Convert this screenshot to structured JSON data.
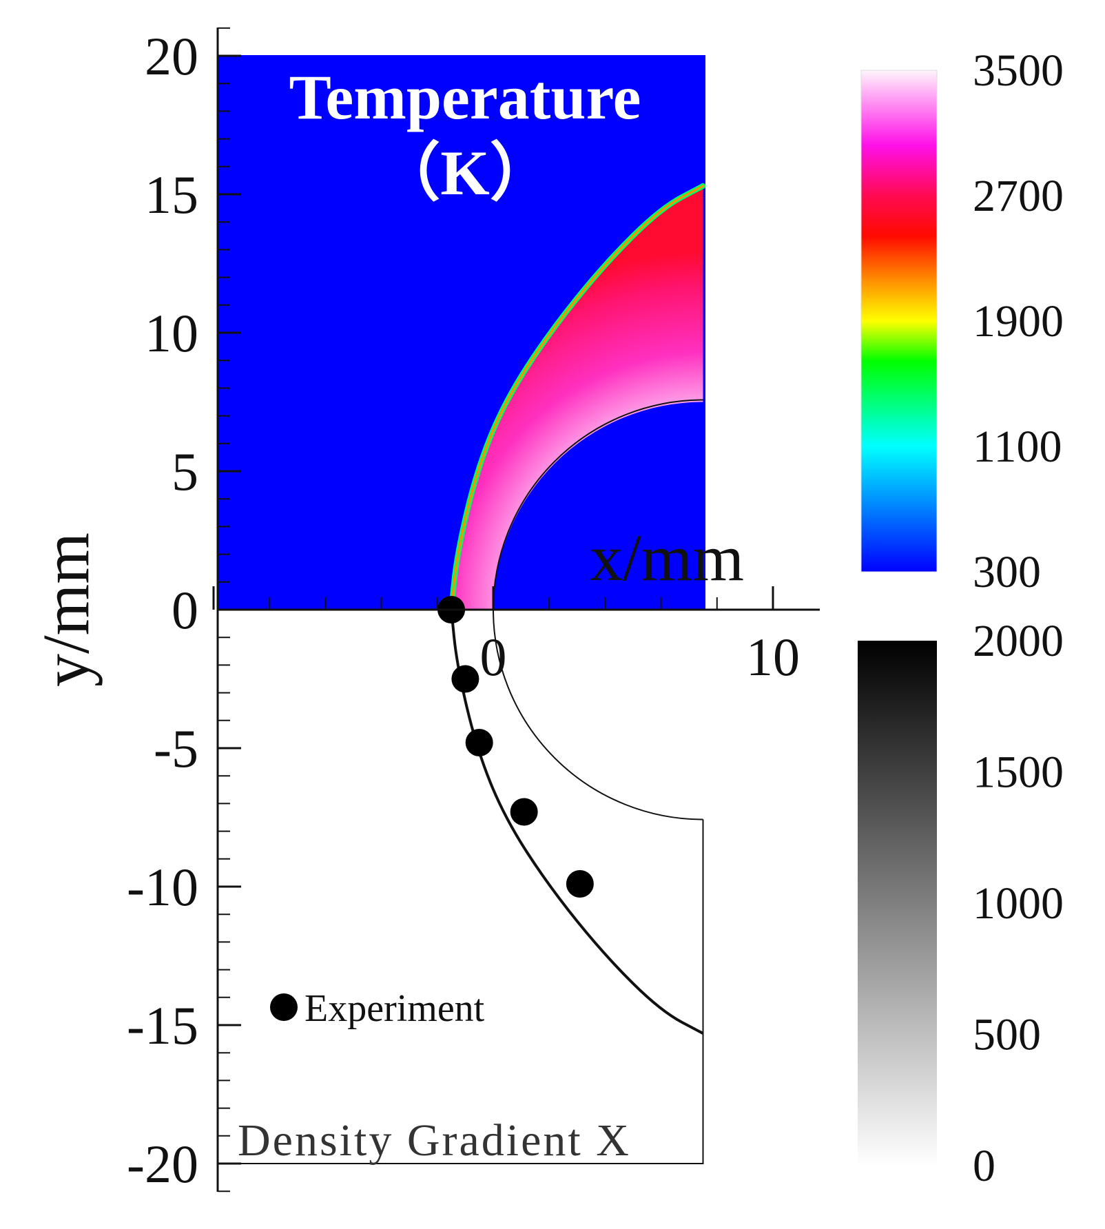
{
  "chart_data": {
    "type": "contour",
    "x_axis": {
      "label": "x/mm",
      "ticks": [
        0,
        10
      ],
      "tick_labels": [
        "0",
        "10"
      ],
      "range": [
        -10,
        11.6
      ]
    },
    "y_axis": {
      "label": "y/mm",
      "ticks": [
        20,
        15,
        10,
        5,
        0,
        -5,
        -10,
        -15,
        -20
      ],
      "tick_labels": [
        "20",
        "15",
        "10",
        "5",
        "0",
        "-5",
        "-10",
        "-15",
        "-20"
      ],
      "range": [
        -21,
        21
      ]
    },
    "upper_panel": {
      "title_line1": "Temperature",
      "title_line2": "（K）",
      "colorbar": {
        "ticks": [
          "3500",
          "2700",
          "1900",
          "1100",
          "300"
        ],
        "values": [
          3500,
          2700,
          1900,
          1100,
          300
        ],
        "colors": [
          "#fff4fb",
          "#ff10e8",
          "#ff0a52",
          "#ff0a00",
          "#ff9000",
          "#ffff00",
          "#00ff00",
          "#00ffff",
          "#0000ff"
        ]
      }
    },
    "lower_panel": {
      "note": "Density Gradient X",
      "colorbar": {
        "ticks": [
          "2000",
          "1500",
          "1000",
          "500",
          "0"
        ],
        "values": [
          2000,
          1500,
          1000,
          500,
          0
        ],
        "colors": [
          "#000000",
          "#ffffff"
        ]
      }
    },
    "body": {
      "type": "cylinder",
      "radius_mm": 7.5,
      "center_mm": [
        7.5,
        0
      ]
    },
    "simulated_shock": [
      [
        -1.5,
        0
      ],
      [
        -1.3,
        2
      ],
      [
        -0.6,
        5
      ],
      [
        0.4,
        7.5
      ],
      [
        2,
        10
      ],
      [
        4,
        12.5
      ],
      [
        6,
        14.5
      ],
      [
        7.5,
        15.3
      ]
    ],
    "series": [
      {
        "name": "Experiment",
        "marker": "filled-circle",
        "points": [
          [
            -1.5,
            0
          ],
          [
            -1.0,
            -2.5
          ],
          [
            -0.5,
            -4.8
          ],
          [
            1.1,
            -7.3
          ],
          [
            3.1,
            -9.9
          ]
        ]
      }
    ],
    "colors": {
      "freestream": "#0000ff",
      "shock_layer": "#ff1ea6",
      "marker": "#000000"
    }
  }
}
